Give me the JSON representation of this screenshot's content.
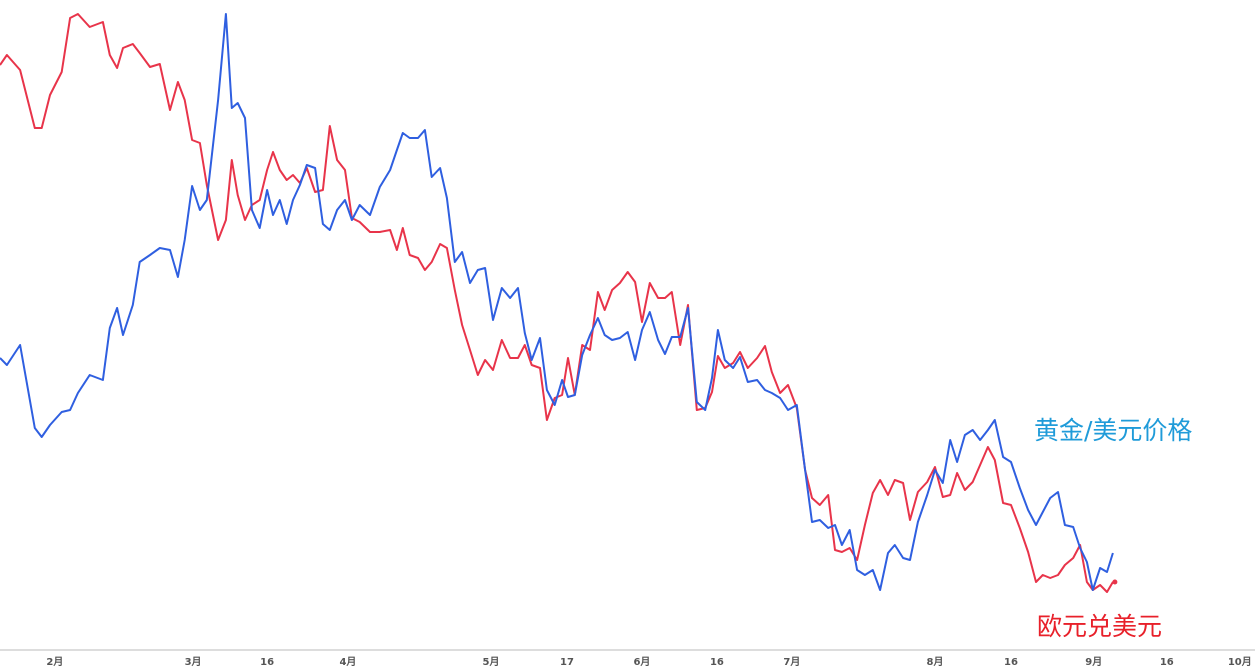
{
  "chart_data": {
    "type": "line",
    "x": [
      -11.2,
      -9.8,
      -7.1,
      -4.1,
      -2.7,
      -1.0,
      1.4,
      3.1,
      4.7,
      7.1,
      9.8,
      11.2,
      12.7,
      13.9,
      15.9,
      17.3,
      19.4,
      21.4,
      23.5,
      25.1,
      26.5,
      28.0,
      29.6,
      31.0,
      33.3,
      34.9,
      36.1,
      37.3,
      38.8,
      40.2,
      41.8,
      43.3,
      44.5,
      45.9,
      47.3,
      48.6,
      50.0,
      51.4,
      53.1,
      54.7,
      56.1,
      57.6,
      59.2,
      60.6,
      62.2,
      64.3,
      66.3,
      68.4,
      69.8,
      71.0,
      72.4,
      74.1,
      75.5,
      76.9,
      78.6,
      80.0,
      81.6,
      83.1,
      84.7,
      86.3,
      87.8,
      89.4,
      91.2,
      92.9,
      94.5,
      95.9,
      97.3,
      99.0,
      100.4,
      102.0,
      103.5,
      104.7,
      106.1,
      107.6,
      109.2,
      110.8,
      112.2,
      113.7,
      115.3,
      116.9,
      118.4,
      119.8,
      121.4,
      123.1,
      124.5,
      125.9,
      127.6,
      129.2,
      131.0,
      132.7,
      134.1,
      135.3,
      136.7,
      138.4,
      139.8,
      141.4,
      143.3,
      144.9,
      146.3,
      148.0,
      149.6,
      151.4,
      153.1,
      154.5,
      156.1,
      157.8,
      159.2,
      160.6,
      162.2,
      163.7,
      165.3,
      166.9,
      168.4,
      170.0,
      171.4,
      173.1,
      174.5,
      176.1,
      178.0,
      179.6,
      181.2,
      182.7,
      184.1,
      185.7,
      187.3,
      188.8,
      190.4,
      191.8,
      193.5,
      195.1,
      196.9,
      198.6,
      200.2,
      201.6,
      203.1,
      204.7,
      206.1,
      207.8,
      209.2,
      210.6,
      211.8,
      213.3,
      214.7,
      215.9
    ],
    "series": [
      {
        "name": "欧元兑美元",
        "color": "#e8344a",
        "label_color": "#e8202a",
        "values": [
          585,
          595,
          580,
          522,
          522,
          555,
          578,
          632,
          636,
          623,
          628,
          595,
          582,
          602,
          606,
          597,
          583,
          586,
          540,
          568,
          550,
          510,
          507,
          465,
          410,
          430,
          490,
          455,
          430,
          445,
          450,
          480,
          498,
          480,
          470,
          475,
          467,
          482,
          458,
          460,
          524,
          490,
          480,
          432,
          428,
          418,
          418,
          420,
          400,
          422,
          395,
          392,
          380,
          388,
          406,
          402,
          360,
          325,
          300,
          275,
          290,
          280,
          310,
          292,
          292,
          305,
          285,
          282,
          230,
          252,
          255,
          292,
          255,
          305,
          300,
          358,
          340,
          360,
          367,
          378,
          368,
          328,
          367,
          352,
          352,
          358,
          305,
          345,
          240,
          242,
          258,
          294,
          282,
          287,
          298,
          282,
          292,
          304,
          278,
          257,
          265,
          242,
          180,
          152,
          145,
          155,
          100,
          98,
          102,
          90,
          125,
          157,
          170,
          155,
          170,
          167,
          130,
          158,
          168,
          183,
          153,
          155,
          177,
          160,
          168,
          185,
          203,
          190,
          147,
          145,
          122,
          98,
          68,
          75,
          72,
          75,
          85,
          92,
          105,
          68,
          60,
          65,
          58,
          68
        ]
      },
      {
        "name": "黄金/美元价格",
        "color": "#2f5fe0",
        "label_color": "#1f9bd9",
        "values": [
          292,
          285,
          305,
          222,
          213,
          225,
          238,
          240,
          257,
          275,
          270,
          322,
          342,
          315,
          345,
          388,
          395,
          402,
          400,
          373,
          410,
          464,
          440,
          450,
          550,
          636,
          542,
          547,
          532,
          440,
          422,
          460,
          435,
          450,
          426,
          450,
          465,
          485,
          482,
          426,
          420,
          440,
          450,
          430,
          445,
          435,
          463,
          480,
          500,
          517,
          512,
          512,
          520,
          473,
          482,
          452,
          388,
          398,
          367,
          380,
          382,
          330,
          362,
          352,
          362,
          317,
          290,
          312,
          260,
          245,
          270,
          253,
          255,
          295,
          315,
          332,
          315,
          310,
          312,
          318,
          290,
          320,
          338,
          310,
          296,
          313,
          313,
          342,
          248,
          240,
          272,
          320,
          290,
          282,
          293,
          268,
          270,
          260,
          257,
          252,
          240,
          245,
          180,
          128,
          130,
          122,
          125,
          105,
          120,
          80,
          75,
          80,
          60,
          97,
          105,
          92,
          90,
          128,
          155,
          180,
          167,
          210,
          188,
          215,
          220,
          210,
          220,
          230,
          193,
          188,
          162,
          140,
          125,
          138,
          152,
          158,
          125,
          123,
          102,
          88,
          60,
          82,
          78,
          97
        ]
      }
    ],
    "xlim": [
      -11.2,
      244.9
    ],
    "ylim": [
      0,
      650
    ],
    "xticks": [
      {
        "value": 0,
        "label": "2月"
      },
      {
        "value": 28.2,
        "label": "3月"
      },
      {
        "value": 43.3,
        "label": "16"
      },
      {
        "value": 59.8,
        "label": "4月"
      },
      {
        "value": 89.0,
        "label": "5月"
      },
      {
        "value": 104.5,
        "label": "17"
      },
      {
        "value": 119.8,
        "label": "6月"
      },
      {
        "value": 135.1,
        "label": "16"
      },
      {
        "value": 150.4,
        "label": "7月"
      },
      {
        "value": 179.6,
        "label": "8月"
      },
      {
        "value": 195.1,
        "label": "16"
      },
      {
        "value": 212.0,
        "label": "9月"
      },
      {
        "value": 226.9,
        "label": "16"
      },
      {
        "value": 241.8,
        "label": "10月"
      }
    ],
    "end_marker": true
  }
}
